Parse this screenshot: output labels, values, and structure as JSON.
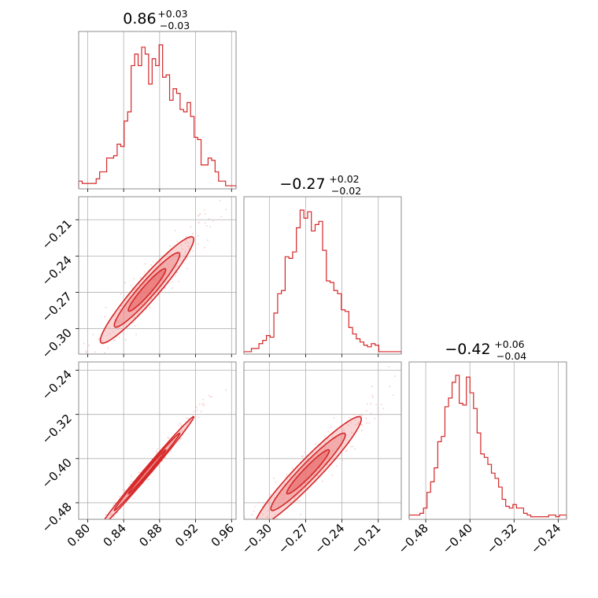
{
  "colors": {
    "series": "#d62728",
    "contour_fill": "#ee8a8a",
    "contour_fill_inner": "#e66060",
    "scatter": "#f2b6b6"
  },
  "chart_data": {
    "type": "corner",
    "parameters": [
      {
        "title": {
          "median": "0.86",
          "plus": "+0.03",
          "minus": "−0.03"
        },
        "range": [
          0.79,
          0.965
        ],
        "ticks": [
          0.8,
          0.84,
          0.88,
          0.92,
          0.96
        ],
        "tick_labels": [
          "0.80",
          "0.84",
          "0.88",
          "0.92",
          "0.96"
        ],
        "hist_counts": [
          3,
          2,
          2,
          2,
          2,
          4,
          7,
          7,
          13,
          13,
          14,
          19,
          18,
          29,
          33,
          53,
          58,
          53,
          61,
          58,
          45,
          56,
          53,
          62,
          48,
          49,
          38,
          43,
          41,
          34,
          33,
          37,
          31,
          22,
          21,
          10,
          10,
          13,
          12,
          7,
          3,
          3,
          1,
          1,
          1
        ]
      },
      {
        "title": {
          "median": "−0.27",
          "plus": "+0.02",
          "minus": "−0.02"
        },
        "range": [
          -0.321,
          -0.191
        ],
        "ticks": [
          -0.3,
          -0.27,
          -0.24,
          -0.21
        ],
        "tick_labels": [
          "−0.30",
          "−0.27",
          "−0.24",
          "−0.21"
        ],
        "hist_counts": [
          1,
          1,
          3,
          3,
          6,
          8,
          11,
          10,
          25,
          37,
          39,
          60,
          59,
          63,
          78,
          89,
          84,
          88,
          76,
          80,
          82,
          64,
          45,
          44,
          39,
          37,
          27,
          26,
          16,
          12,
          9,
          7,
          5,
          4,
          6,
          5,
          1,
          1,
          1,
          1,
          1,
          1
        ]
      },
      {
        "title": {
          "median": "−0.42",
          "plus": "+0.06",
          "minus": "−0.04"
        },
        "range": [
          -0.51,
          -0.225
        ],
        "ticks": [
          -0.48,
          -0.4,
          -0.32,
          -0.24
        ],
        "tick_labels": [
          "−0.48",
          "−0.40",
          "−0.32",
          "−0.24"
        ],
        "hist_counts": [
          2,
          2,
          2,
          3,
          6,
          15,
          21,
          29,
          44,
          47,
          64,
          69,
          78,
          82,
          66,
          65,
          81,
          72,
          63,
          49,
          37,
          35,
          31,
          26,
          23,
          18,
          11,
          7,
          6,
          8,
          6,
          6,
          3,
          2,
          1,
          1,
          1,
          1,
          1,
          2,
          2,
          1,
          2,
          2
        ]
      }
    ],
    "pairs": [
      {
        "x": 0,
        "y": 1,
        "center": [
          0.866,
          -0.268
        ],
        "sd": [
          0.026,
          0.022
        ],
        "corr": 0.95
      },
      {
        "x": 0,
        "y": 2,
        "center": [
          0.866,
          -0.424
        ],
        "sd": [
          0.026,
          0.05
        ],
        "corr": 0.995
      },
      {
        "x": 1,
        "y": 2,
        "center": [
          -0.268,
          -0.424
        ],
        "sd": [
          0.022,
          0.05
        ],
        "corr": 0.955
      }
    ]
  }
}
